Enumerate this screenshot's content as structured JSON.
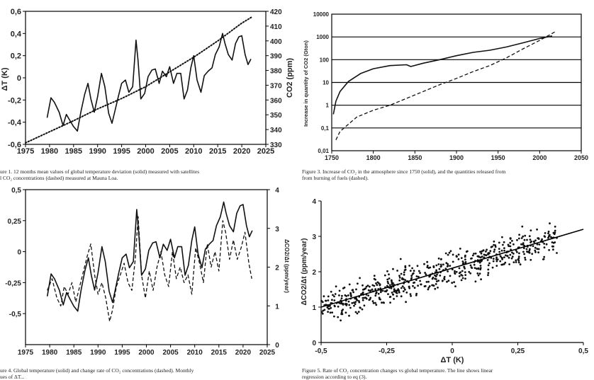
{
  "captions": {
    "fig1_line1": "ure 1. 12 months mean values of global temperature deviation (solid) measured with satellites",
    "fig1_line2": "l CO₂ concentrations (dashed) measured at Mauna Loa.",
    "fig3_line1": "Figure 3. Increase of CO₂ in the atmosphere since 1750 (solid), and the quantities released from",
    "fig3_line2": "from burning of fuels (dashed).",
    "fig4_line1": "ure 4. Global temperature (solid) and change rate of CO₂ concentrations (dashed). Monthly",
    "fig4_line2": "ues of ΔT...",
    "fig5_line1": "Figure 5. Rate of CO₂ concentration changes vs global temperature. The line shows linear",
    "fig5_line2": "regression according to eq (3)."
  },
  "chart_data": [
    {
      "id": "fig1",
      "type": "line",
      "ylabel": "ΔT (K)",
      "y2label": "CO2 (ppm)",
      "xlim": [
        1975,
        2025
      ],
      "ylim": [
        -0.6,
        0.6
      ],
      "y2lim": [
        330,
        420
      ],
      "xticks": [
        "1975",
        "1980",
        "1985",
        "1990",
        "1995",
        "2000",
        "2005",
        "2010",
        "2015",
        "2020",
        "2025"
      ],
      "yticks": [
        "-0,6",
        "-0,4",
        "-0,2",
        "0",
        "0,2",
        "0,4",
        "0,6"
      ],
      "y2ticks": [
        "330",
        "340",
        "350",
        "360",
        "370",
        "380",
        "390",
        "400",
        "410",
        "420"
      ],
      "series": [
        {
          "style": "solid",
          "axis": "left",
          "x": [
            1979.5,
            1980.3,
            1981,
            1982,
            1982.8,
            1983.5,
            1984.3,
            1985,
            1985.8,
            1986.5,
            1987.3,
            1988,
            1988.6,
            1989.3,
            1990,
            1990.8,
            1991.5,
            1992.3,
            1993,
            1993.6,
            1994.3,
            1995,
            1995.8,
            1996.5,
            1997.3,
            1998,
            1998.4,
            1999,
            1999.8,
            2000.5,
            2001.3,
            2002,
            2002.8,
            2003.5,
            2004.3,
            2005,
            2005.8,
            2006.5,
            2007.3,
            2008,
            2008.7,
            2009.4,
            2010,
            2010.7,
            2011.5,
            2012.2,
            2013,
            2013.8,
            2014.5,
            2015.3,
            2016,
            2016.5,
            2017.2,
            2018,
            2018.7,
            2019.4,
            2020,
            2020.7,
            2021.3,
            2021.9
          ],
          "y": [
            -0.36,
            -0.18,
            -0.22,
            -0.31,
            -0.43,
            -0.33,
            -0.39,
            -0.44,
            -0.48,
            -0.31,
            -0.15,
            -0.05,
            -0.19,
            -0.31,
            -0.17,
            0.04,
            -0.08,
            -0.32,
            -0.41,
            -0.3,
            -0.17,
            -0.05,
            -0.02,
            -0.13,
            -0.08,
            0.34,
            0.16,
            -0.19,
            -0.14,
            0.01,
            0.07,
            0.08,
            -0.05,
            0.06,
            0.01,
            0.1,
            -0.05,
            0.04,
            0.04,
            -0.19,
            -0.11,
            0.09,
            0.2,
            -0.02,
            -0.13,
            0.02,
            0.06,
            0.09,
            0.21,
            0.28,
            0.4,
            0.31,
            0.21,
            0.16,
            0.31,
            0.37,
            0.38,
            0.21,
            0.12,
            0.17
          ]
        },
        {
          "style": "dotted",
          "axis": "right",
          "x": [
            1975,
            1980,
            1985,
            1990,
            1995,
            2000,
            2005,
            2010,
            2015,
            2020,
            2022
          ],
          "y": [
            331,
            338.5,
            346,
            354,
            361,
            369,
            379,
            389,
            400,
            412,
            416
          ]
        }
      ]
    },
    {
      "id": "fig3",
      "type": "line",
      "ylabel": "Increase in quantity of CO2 (Gton)",
      "xlim": [
        1750,
        2050
      ],
      "ylim": [
        0.01,
        10000
      ],
      "scale": "log",
      "xticks": [
        "1750",
        "1800",
        "1850",
        "1900",
        "1950",
        "2000",
        "2050"
      ],
      "yticks": [
        "0,01",
        "0,1",
        "1",
        "10",
        "100",
        "1000",
        "10000"
      ],
      "series": [
        {
          "style": "solid",
          "x": [
            1752,
            1755,
            1760,
            1770,
            1785,
            1800,
            1820,
            1840,
            1845,
            1860,
            1880,
            1900,
            1920,
            1940,
            1960,
            1980,
            2000,
            2015
          ],
          "y": [
            0.4,
            1.5,
            4,
            11,
            25,
            40,
            55,
            60,
            50,
            70,
            100,
            150,
            210,
            260,
            360,
            550,
            850,
            1100
          ]
        },
        {
          "style": "dashed",
          "x": [
            1755,
            1760,
            1780,
            1800,
            1820,
            1840,
            1860,
            1880,
            1900,
            1920,
            1940,
            1960,
            1980,
            2000,
            2020
          ],
          "y": [
            0.03,
            0.07,
            0.3,
            0.6,
            1,
            2,
            4,
            8,
            15,
            30,
            55,
            120,
            300,
            700,
            1800
          ]
        }
      ]
    },
    {
      "id": "fig4",
      "type": "line",
      "ylabel": "ΔCO2/Δt (ppm/year)",
      "xlim": [
        1975,
        2025
      ],
      "ylim": [
        -0.75,
        0.5
      ],
      "y2lim": [
        0,
        4
      ],
      "xticks": [
        "1975",
        "1980",
        "1985",
        "1990",
        "1995",
        "2000",
        "2005",
        "2010",
        "2015",
        "2020",
        "2025"
      ],
      "yticks": [
        "0,5",
        "0,25",
        "0",
        "-0,25",
        "-0,5"
      ],
      "y2ticks": [
        "4",
        "3",
        "2",
        "1",
        "0"
      ],
      "series": [
        {
          "style": "solid",
          "axis": "left",
          "x": [
            1979.5,
            1980.3,
            1981,
            1982,
            1982.8,
            1983.5,
            1984.3,
            1985,
            1985.8,
            1986.5,
            1987.3,
            1988,
            1988.6,
            1989.3,
            1990,
            1990.8,
            1991.5,
            1992.3,
            1993,
            1993.6,
            1994.3,
            1995,
            1995.8,
            1996.5,
            1997.3,
            1998,
            1998.4,
            1999,
            1999.8,
            2000.5,
            2001.3,
            2002,
            2002.8,
            2003.5,
            2004.3,
            2005,
            2005.8,
            2006.5,
            2007.3,
            2008,
            2008.7,
            2009.4,
            2010,
            2010.7,
            2011.5,
            2012.2,
            2013,
            2013.8,
            2014.5,
            2015.3,
            2016,
            2016.5,
            2017.2,
            2018,
            2018.7,
            2019.4,
            2020,
            2020.7,
            2021.3,
            2021.9
          ],
          "y": [
            -0.36,
            -0.18,
            -0.22,
            -0.31,
            -0.43,
            -0.33,
            -0.39,
            -0.44,
            -0.48,
            -0.31,
            -0.15,
            -0.05,
            -0.19,
            -0.31,
            -0.17,
            0.04,
            -0.08,
            -0.32,
            -0.41,
            -0.3,
            -0.17,
            -0.05,
            -0.02,
            -0.13,
            -0.08,
            0.34,
            0.16,
            -0.19,
            -0.14,
            0.01,
            0.07,
            0.08,
            -0.05,
            0.06,
            0.01,
            0.1,
            -0.05,
            0.04,
            0.04,
            -0.19,
            -0.11,
            0.09,
            0.2,
            -0.02,
            -0.13,
            0.02,
            0.06,
            0.09,
            0.21,
            0.28,
            0.4,
            0.31,
            0.21,
            0.16,
            0.31,
            0.37,
            0.38,
            0.21,
            0.12,
            0.17
          ]
        },
        {
          "style": "dashed",
          "axis": "right",
          "x": [
            1979.5,
            1980.5,
            1981.5,
            1982.3,
            1983,
            1983.8,
            1984.6,
            1985.4,
            1986.2,
            1987,
            1987.8,
            1988.5,
            1989.3,
            1990,
            1990.8,
            1991.6,
            1992.4,
            1993,
            1993.8,
            1994.6,
            1995.4,
            1996.2,
            1997,
            1997.7,
            1998.3,
            1999,
            1999.8,
            2000.6,
            2001.4,
            2002.2,
            2003,
            2003.8,
            2004.6,
            2005.4,
            2006.2,
            2007,
            2007.8,
            2008.6,
            2009.4,
            2010.2,
            2011,
            2011.8,
            2012.6,
            2013.4,
            2014.2,
            2015,
            2015.8,
            2016.4,
            2017.2,
            2018,
            2018.8,
            2019.6,
            2020.4,
            2021.2,
            2021.8
          ],
          "y": [
            1.4,
            1.7,
            1.2,
            1.0,
            1.5,
            1.3,
            1.6,
            1.1,
            1.5,
            1.9,
            2.3,
            2.6,
            1.8,
            1.3,
            1.6,
            1.2,
            0.6,
            0.9,
            1.5,
            1.8,
            2.1,
            1.6,
            1.4,
            2.2,
            3.3,
            1.8,
            1.2,
            1.9,
            1.4,
            2.0,
            2.4,
            1.8,
            1.5,
            2.4,
            1.7,
            2.0,
            1.6,
            1.8,
            1.3,
            2.5,
            2.1,
            1.6,
            2.6,
            2.0,
            2.4,
            1.9,
            3.2,
            2.9,
            2.2,
            2.7,
            2.2,
            2.5,
            2.9,
            2.1,
            1.7
          ]
        }
      ]
    },
    {
      "id": "fig5",
      "type": "scatter",
      "xlabel": "ΔT (K)",
      "ylabel": "ΔCO2/Δt (ppm/year)",
      "xlim": [
        -0.5,
        0.5
      ],
      "ylim": [
        0,
        4
      ],
      "xticks": [
        "-0,5",
        "-0,25",
        "0",
        "0,25",
        "0,5"
      ],
      "yticks": [
        "0",
        "1",
        "2",
        "3",
        "4"
      ],
      "regression": {
        "slope": 2.2,
        "intercept": 2.1,
        "x": [
          -0.5,
          0.5
        ]
      },
      "points_desc": "dense cloud of ~600 monthly points spanning x -0.5..0.4, y 0.4..3.6 around the regression line"
    }
  ]
}
